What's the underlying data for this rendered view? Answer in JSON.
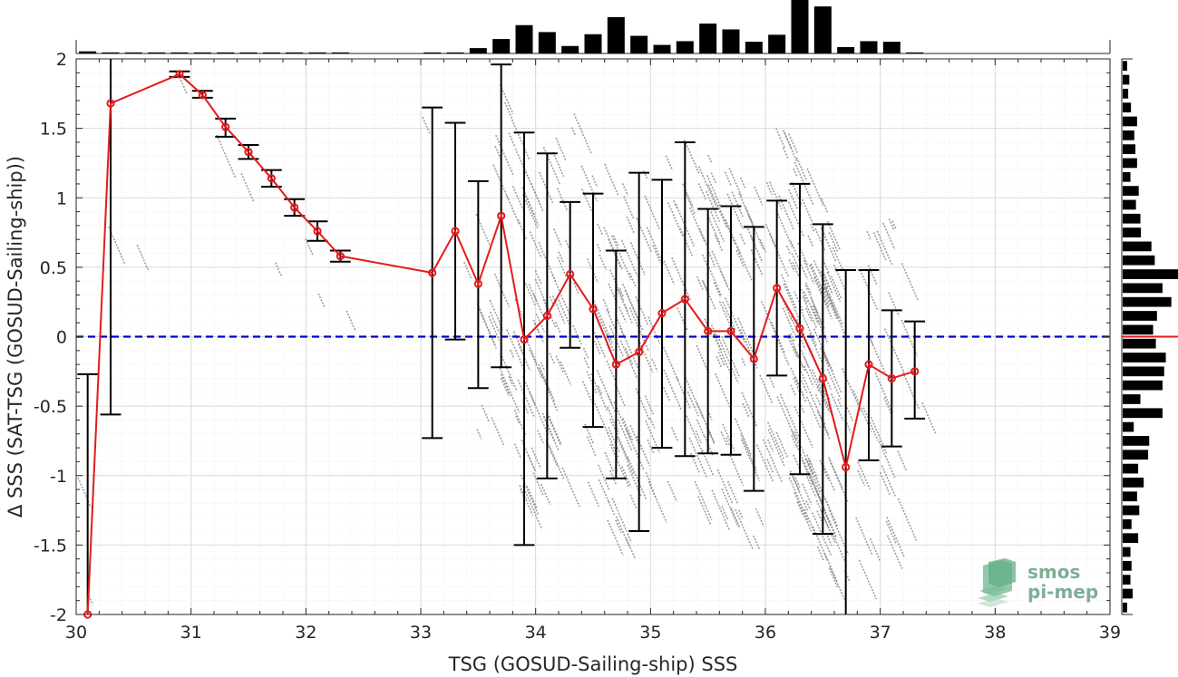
{
  "chart_data": {
    "type": "scatter",
    "xlabel": "TSG (GOSUD-Sailing-ship) SSS",
    "ylabel": "Δ SSS (SAT-TSG (GOSUD-Sailing-ship))",
    "xlim": [
      30,
      39
    ],
    "ylim": [
      -2,
      2
    ],
    "xticks": [
      "30",
      "31",
      "32",
      "33",
      "34",
      "35",
      "36",
      "37",
      "38",
      "39"
    ],
    "yticks": [
      "2",
      "1.5",
      "1",
      "0.5",
      "0",
      "-0.5",
      "-1",
      "-1.5",
      "-2"
    ],
    "grid": true,
    "zero_line": 0,
    "colors": {
      "mean": "#e41a1c",
      "zero": "#0000cc",
      "scatter": "#8c8c8c",
      "bars": "#000000"
    },
    "series": [
      {
        "x": [
          30.1,
          30.3,
          30.9,
          31.1,
          31.3,
          31.5,
          31.7,
          31.9,
          32.1,
          32.3,
          33.1,
          33.3,
          33.5,
          33.7,
          33.9,
          34.1,
          34.3,
          34.5,
          34.7,
          34.9,
          35.1,
          35.3,
          35.5,
          35.7,
          35.9,
          36.1,
          36.3,
          36.5,
          36.7,
          36.9,
          37.1,
          37.3
        ],
        "mean": [
          -2.0,
          1.68,
          1.89,
          1.74,
          1.51,
          1.33,
          1.14,
          0.93,
          0.76,
          0.58,
          0.46,
          0.76,
          0.38,
          0.87,
          -0.02,
          0.15,
          0.45,
          0.2,
          -0.2,
          -0.11,
          0.17,
          0.27,
          0.04,
          0.04,
          -0.16,
          0.35,
          0.06,
          -0.3,
          -0.94,
          -0.2,
          -0.3,
          -0.25
        ],
        "lower": [
          -2.0,
          -0.56,
          1.87,
          1.72,
          1.44,
          1.28,
          1.08,
          0.87,
          0.69,
          0.54,
          -0.73,
          -0.02,
          -0.37,
          -0.22,
          -1.5,
          -1.02,
          -0.08,
          -0.65,
          -1.02,
          -1.4,
          -0.8,
          -0.86,
          -0.84,
          -0.85,
          -1.11,
          -0.28,
          -0.99,
          -1.42,
          -2.0,
          -0.89,
          -0.79,
          -0.59
        ],
        "upper": [
          -0.27,
          2.0,
          1.91,
          1.77,
          1.57,
          1.38,
          1.2,
          0.99,
          0.83,
          0.62,
          1.65,
          1.54,
          1.12,
          1.96,
          1.47,
          1.32,
          0.97,
          1.03,
          0.62,
          1.18,
          1.13,
          1.4,
          0.92,
          0.94,
          0.79,
          0.98,
          1.1,
          0.81,
          0.48,
          0.48,
          0.19,
          0.11
        ]
      }
    ],
    "top_histogram": {
      "bin_centers": [
        30.1,
        30.3,
        30.5,
        30.7,
        30.9,
        31.1,
        31.3,
        31.5,
        31.7,
        31.9,
        32.1,
        32.3,
        32.5,
        32.7,
        32.9,
        33.1,
        33.3,
        33.5,
        33.7,
        33.9,
        34.1,
        34.3,
        34.5,
        34.7,
        34.9,
        35.1,
        35.3,
        35.5,
        35.7,
        35.9,
        36.1,
        36.3,
        36.5,
        36.7,
        36.9,
        37.1,
        37.3
      ],
      "relative_counts": [
        0.04,
        0.02,
        0.02,
        0.02,
        0.02,
        0.02,
        0.02,
        0.02,
        0.02,
        0.02,
        0.02,
        0.02,
        0.0,
        0.0,
        0.0,
        0.02,
        0.02,
        0.1,
        0.27,
        0.53,
        0.4,
        0.14,
        0.36,
        0.68,
        0.33,
        0.16,
        0.23,
        0.56,
        0.45,
        0.22,
        0.35,
        1.0,
        0.88,
        0.12,
        0.23,
        0.22,
        0.02
      ]
    },
    "right_histogram": {
      "bin_centers": [
        1.95,
        1.85,
        1.75,
        1.65,
        1.55,
        1.45,
        1.35,
        1.25,
        1.15,
        1.05,
        0.95,
        0.85,
        0.75,
        0.65,
        0.55,
        0.45,
        0.35,
        0.25,
        0.15,
        0.05,
        -0.05,
        -0.15,
        -0.25,
        -0.35,
        -0.45,
        -0.55,
        -0.65,
        -0.75,
        -0.85,
        -0.95,
        -1.05,
        -1.15,
        -1.25,
        -1.35,
        -1.45,
        -1.55,
        -1.65,
        -1.75,
        -1.85,
        -1.95
      ],
      "relative_counts": [
        0.08,
        0.12,
        0.1,
        0.15,
        0.26,
        0.21,
        0.23,
        0.26,
        0.14,
        0.29,
        0.24,
        0.32,
        0.33,
        0.52,
        0.58,
        1.0,
        0.72,
        0.88,
        0.62,
        0.55,
        0.6,
        0.78,
        0.75,
        0.72,
        0.32,
        0.72,
        0.2,
        0.48,
        0.46,
        0.28,
        0.38,
        0.26,
        0.3,
        0.16,
        0.28,
        0.14,
        0.16,
        0.14,
        0.18,
        0.08
      ]
    },
    "right_histogram_marker": 0
  },
  "logo": {
    "line1": "smos",
    "line2": "pi-mep"
  }
}
